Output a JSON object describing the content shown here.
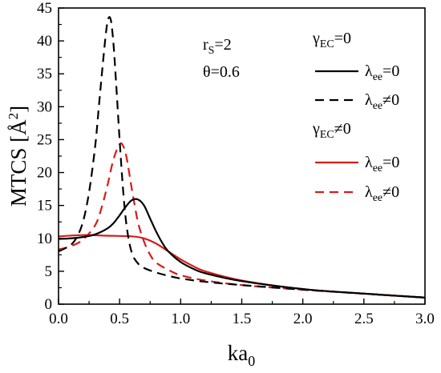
{
  "chart_data": {
    "type": "line",
    "title": "",
    "xlabel": "ka",
    "xlabel_sub": "0",
    "ylabel": "MTCS [Å",
    "ylabel_sup": "2",
    "ylabel_close": "]",
    "xlim": [
      0,
      3.0
    ],
    "ylim": [
      0,
      45
    ],
    "xticks": [
      "0.0",
      "0.5",
      "1.0",
      "1.5",
      "2.0",
      "2.5",
      "3.0"
    ],
    "yticks": [
      "0",
      "5",
      "10",
      "15",
      "20",
      "25",
      "30",
      "35",
      "40",
      "45"
    ],
    "grid": false,
    "annotations": [
      {
        "text": "r",
        "sub": "S",
        "rest": "=2"
      },
      {
        "text": "θ=0.6"
      }
    ],
    "legend_groups": [
      {
        "header": "γ",
        "header_sub": "EC",
        "header_rest": "=0"
      },
      {
        "header": "γ",
        "header_sub": "EC",
        "header_rest": "≠0"
      }
    ],
    "series": [
      {
        "name": "λ",
        "name_sub": "ee",
        "name_rest": "=0",
        "group": 0,
        "color": "#000000",
        "dash": "solid",
        "x": [
          0.0,
          0.1,
          0.2,
          0.3,
          0.4,
          0.45,
          0.5,
          0.55,
          0.6,
          0.65,
          0.7,
          0.75,
          0.8,
          0.85,
          0.9,
          1.0,
          1.1,
          1.2,
          1.5,
          2.0,
          2.5,
          3.0
        ],
        "y": [
          9.9,
          10.0,
          10.2,
          10.6,
          11.5,
          12.3,
          13.5,
          14.8,
          15.8,
          15.9,
          15.0,
          13.0,
          11.0,
          9.3,
          8.0,
          6.4,
          5.4,
          4.7,
          3.5,
          2.3,
          1.6,
          1.0
        ]
      },
      {
        "name": "λ",
        "name_sub": "ee",
        "name_rest": "≠0",
        "group": 0,
        "color": "#000000",
        "dash": "dashed",
        "x": [
          0.0,
          0.1,
          0.15,
          0.2,
          0.25,
          0.3,
          0.33,
          0.36,
          0.39,
          0.41,
          0.43,
          0.45,
          0.47,
          0.5,
          0.53,
          0.56,
          0.6,
          0.65,
          0.7,
          0.8,
          0.9,
          1.0,
          1.2,
          1.5,
          2.0,
          2.5,
          3.0
        ],
        "y": [
          8.0,
          9.0,
          10.2,
          12.5,
          17.0,
          24.0,
          30.0,
          36.0,
          41.5,
          43.5,
          43.0,
          39.5,
          34.0,
          25.0,
          17.0,
          11.5,
          7.8,
          6.2,
          5.5,
          4.8,
          4.3,
          3.9,
          3.4,
          2.9,
          2.2,
          1.6,
          1.0
        ]
      },
      {
        "name": "λ",
        "name_sub": "ee",
        "name_rest": "=0",
        "group": 1,
        "color": "#d81b1b",
        "dash": "solid",
        "x": [
          0.0,
          0.2,
          0.4,
          0.6,
          0.7,
          0.8,
          0.9,
          1.0,
          1.1,
          1.2,
          1.5,
          2.0,
          2.5,
          3.0
        ],
        "y": [
          10.3,
          10.5,
          10.4,
          10.3,
          10.0,
          9.2,
          8.0,
          6.8,
          5.8,
          5.0,
          3.6,
          2.3,
          1.6,
          1.0
        ]
      },
      {
        "name": "λ",
        "name_sub": "ee",
        "name_rest": "≠0",
        "group": 1,
        "color": "#d81b1b",
        "dash": "dashed",
        "x": [
          0.0,
          0.1,
          0.2,
          0.3,
          0.35,
          0.4,
          0.45,
          0.5,
          0.53,
          0.56,
          0.6,
          0.65,
          0.7,
          0.75,
          0.8,
          0.9,
          1.0,
          1.2,
          1.5,
          2.0,
          2.5,
          3.0
        ],
        "y": [
          8.3,
          8.8,
          9.8,
          12.0,
          14.5,
          18.0,
          22.0,
          24.3,
          24.0,
          22.0,
          17.5,
          12.5,
          9.5,
          7.5,
          6.3,
          5.2,
          4.4,
          3.6,
          2.9,
          2.2,
          1.6,
          1.0
        ]
      }
    ]
  }
}
